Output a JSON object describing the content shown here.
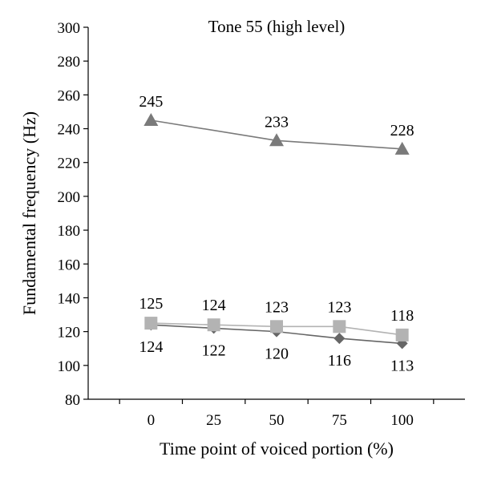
{
  "chart_data": {
    "type": "line",
    "title": "Tone 55 (high level)",
    "xlabel": "Time point of voiced portion (%)",
    "ylabel": "Fundamental frequency (Hz)",
    "xlim": [
      -25,
      125
    ],
    "ylim": [
      80,
      300
    ],
    "x_ticks": [
      0,
      25,
      50,
      75,
      100
    ],
    "y_ticks": [
      80,
      100,
      120,
      140,
      160,
      180,
      200,
      220,
      240,
      260,
      280,
      300
    ],
    "grid": false,
    "legend": "none",
    "series": [
      {
        "marker": "triangle",
        "color": "#7a7a7a",
        "points": [
          {
            "x": 0,
            "y": 245,
            "label": "245"
          },
          {
            "x": 50,
            "y": 233,
            "label": "233"
          },
          {
            "x": 100,
            "y": 228,
            "label": "228"
          }
        ]
      },
      {
        "marker": "diamond",
        "color": "#666666",
        "points": [
          {
            "x": 0,
            "y": 124,
            "label": "124"
          },
          {
            "x": 25,
            "y": 122,
            "label": "122"
          },
          {
            "x": 50,
            "y": 120,
            "label": "120"
          },
          {
            "x": 75,
            "y": 116,
            "label": "116"
          },
          {
            "x": 100,
            "y": 113,
            "label": "113"
          }
        ]
      },
      {
        "marker": "square",
        "color": "#b3b3b3",
        "points": [
          {
            "x": 0,
            "y": 125,
            "label": "125"
          },
          {
            "x": 25,
            "y": 124,
            "label": "124"
          },
          {
            "x": 50,
            "y": 123,
            "label": "123"
          },
          {
            "x": 75,
            "y": 123,
            "label": "123"
          },
          {
            "x": 100,
            "y": 118,
            "label": "118"
          }
        ]
      }
    ]
  }
}
